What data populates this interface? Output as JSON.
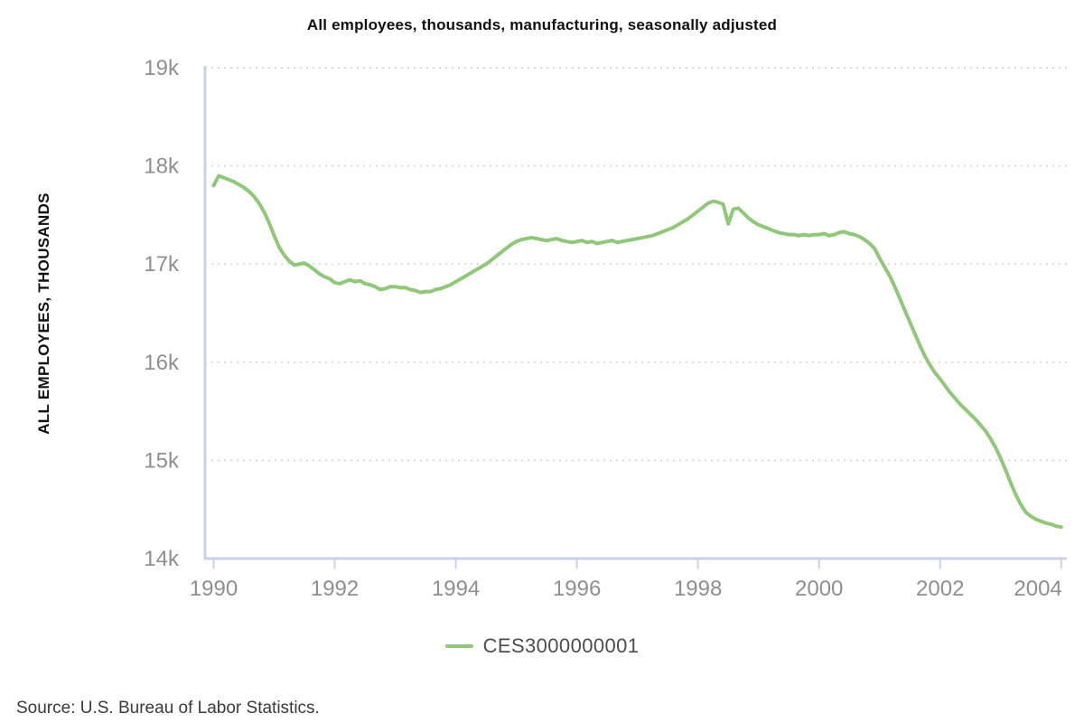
{
  "chart_data": {
    "type": "line",
    "title": "All employees, thousands, manufacturing, seasonally adjusted",
    "xlabel": "",
    "ylabel": "ALL EMPLOYEES, THOUSANDS",
    "units": "thousands of employees",
    "frequency": "monthly",
    "x_start": "1990-01",
    "x_end": "2004-01",
    "xlim": [
      1990,
      2004
    ],
    "ylim": [
      14000,
      19000
    ],
    "y_tick_interval": 1000,
    "y_tick_labels": [
      "19k",
      "18k",
      "17k",
      "16k",
      "15k",
      "14k"
    ],
    "x_tick_labels": [
      "1990",
      "1992",
      "1994",
      "1996",
      "1998",
      "2000",
      "2002",
      "2004"
    ],
    "grid": "horizontal-dotted",
    "legend_position": "bottom-center",
    "colors": {
      "line": "#90c879",
      "axis": "#c9d2e8",
      "grid": "#d9d9d9",
      "tick_text": "#8f8f8f"
    },
    "series": [
      {
        "name": "CES3000000001",
        "color": "#90c879",
        "values": [
          17800,
          17900,
          17880,
          17860,
          17840,
          17810,
          17780,
          17740,
          17690,
          17620,
          17530,
          17420,
          17290,
          17170,
          17090,
          17030,
          16990,
          17000,
          17010,
          16980,
          16940,
          16900,
          16870,
          16850,
          16810,
          16800,
          16820,
          16840,
          16820,
          16830,
          16800,
          16790,
          16770,
          16740,
          16750,
          16770,
          16770,
          16760,
          16760,
          16740,
          16730,
          16710,
          16720,
          16720,
          16740,
          16750,
          16770,
          16790,
          16820,
          16850,
          16880,
          16910,
          16940,
          16970,
          17000,
          17040,
          17080,
          17120,
          17160,
          17200,
          17230,
          17250,
          17260,
          17270,
          17260,
          17250,
          17240,
          17250,
          17260,
          17240,
          17230,
          17220,
          17230,
          17240,
          17220,
          17230,
          17210,
          17220,
          17230,
          17240,
          17220,
          17230,
          17240,
          17250,
          17260,
          17270,
          17280,
          17290,
          17310,
          17330,
          17350,
          17370,
          17400,
          17430,
          17460,
          17500,
          17540,
          17580,
          17620,
          17640,
          17630,
          17610,
          17410,
          17560,
          17570,
          17520,
          17470,
          17430,
          17400,
          17380,
          17360,
          17340,
          17320,
          17310,
          17300,
          17300,
          17290,
          17300,
          17290,
          17300,
          17300,
          17310,
          17290,
          17300,
          17320,
          17330,
          17310,
          17300,
          17280,
          17250,
          17210,
          17160,
          17060,
          16970,
          16880,
          16770,
          16650,
          16530,
          16410,
          16290,
          16170,
          16060,
          15970,
          15890,
          15830,
          15760,
          15690,
          15630,
          15570,
          15520,
          15470,
          15420,
          15360,
          15300,
          15220,
          15130,
          15020,
          14900,
          14770,
          14650,
          14550,
          14470,
          14430,
          14400,
          14380,
          14360,
          14350,
          14330,
          14320
        ]
      }
    ]
  },
  "footer": {
    "source": "Source: U.S. Bureau of Labor Statistics."
  }
}
